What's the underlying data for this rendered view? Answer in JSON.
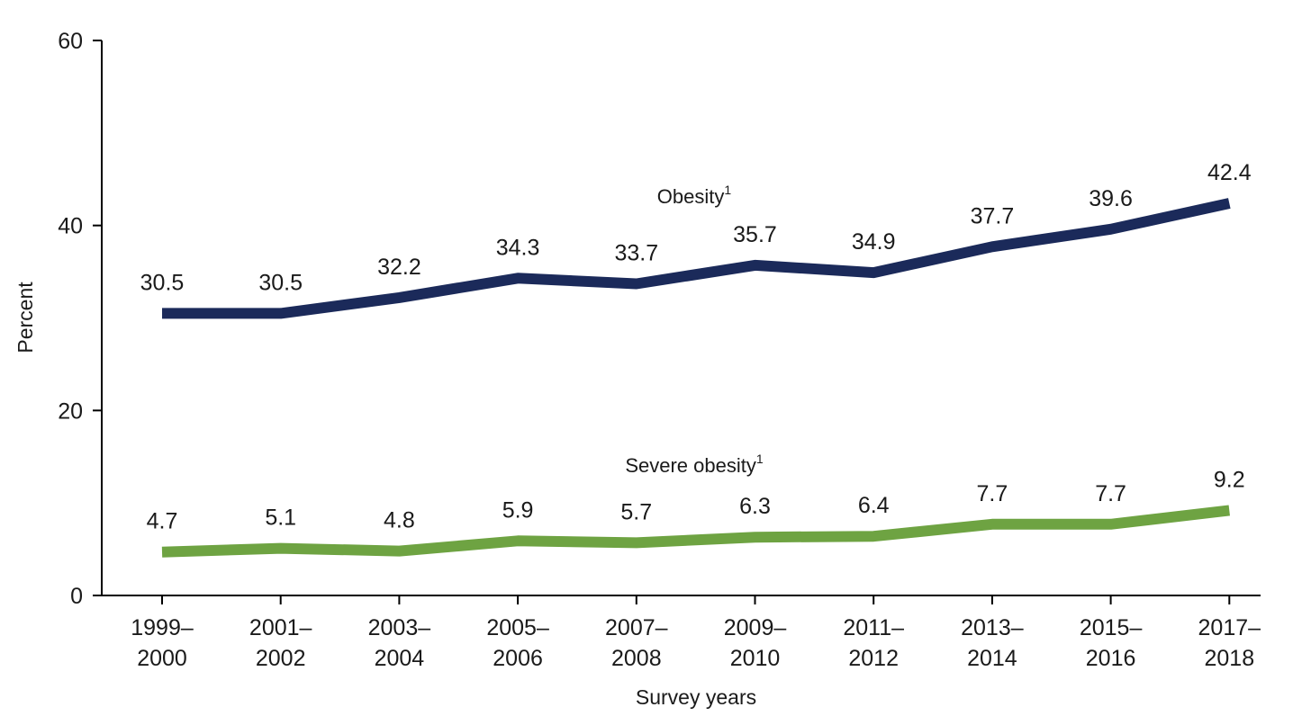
{
  "chart_data": {
    "type": "line",
    "categories": [
      [
        "1999–",
        "2000"
      ],
      [
        "2001–",
        "2002"
      ],
      [
        "2003–",
        "2004"
      ],
      [
        "2005–",
        "2006"
      ],
      [
        "2007–",
        "2008"
      ],
      [
        "2009–",
        "2010"
      ],
      [
        "2011–",
        "2012"
      ],
      [
        "2013–",
        "2014"
      ],
      [
        "2015–",
        "2016"
      ],
      [
        "2017–",
        "2018"
      ]
    ],
    "series": [
      {
        "name": "Obesity",
        "footnote": "1",
        "color": "#1b2a5a",
        "values": [
          30.5,
          30.5,
          32.2,
          34.3,
          33.7,
          35.7,
          34.9,
          37.7,
          39.6,
          42.4
        ],
        "labels": [
          "30.5",
          "30.5",
          "32.2",
          "34.3",
          "33.7",
          "35.7",
          "34.9",
          "37.7",
          "39.6",
          "42.4"
        ]
      },
      {
        "name": "Severe obesity",
        "footnote": "1",
        "color": "#6ea342",
        "values": [
          4.7,
          5.1,
          4.8,
          5.9,
          5.7,
          6.3,
          6.4,
          7.7,
          7.7,
          9.2
        ],
        "labels": [
          "4.7",
          "5.1",
          "4.8",
          "5.9",
          "5.7",
          "6.3",
          "6.4",
          "7.7",
          "7.7",
          "9.2"
        ]
      }
    ],
    "xlabel": "Survey years",
    "ylabel": "Percent",
    "ylim": [
      0,
      60
    ],
    "yticks": [
      0,
      20,
      40,
      60
    ],
    "ytick_labels": [
      "0",
      "20",
      "40",
      "60"
    ],
    "grid": false
  }
}
